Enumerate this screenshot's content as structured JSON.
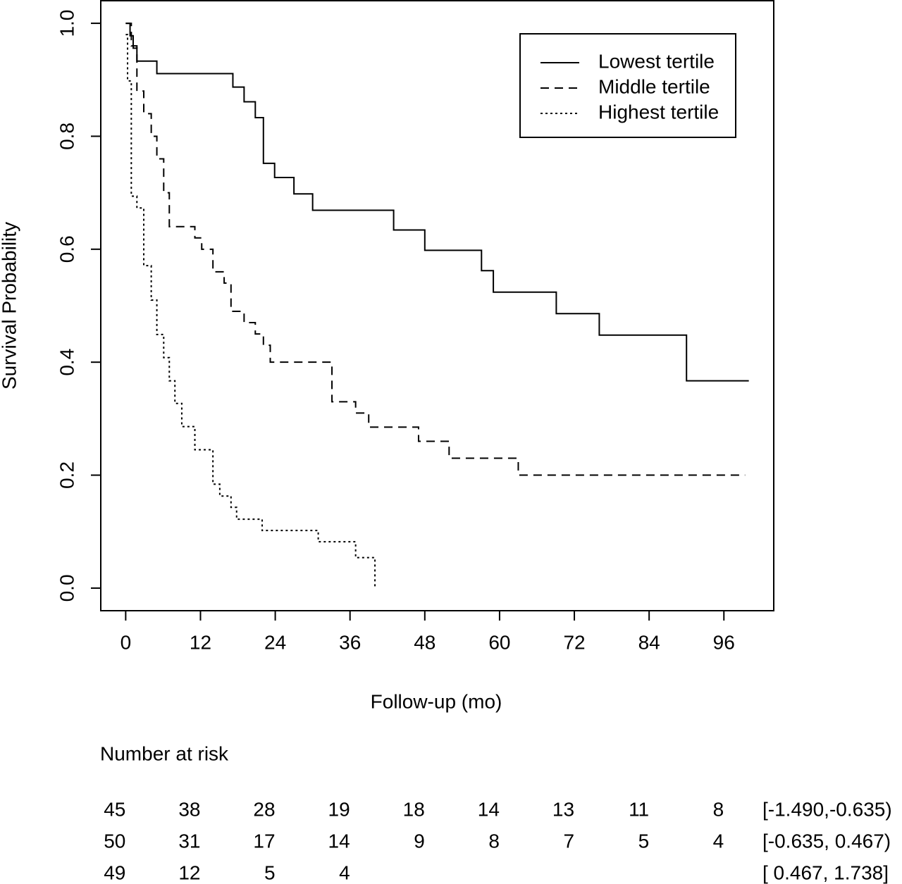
{
  "chart_data": {
    "type": "step",
    "x_label": "Follow-up (mo)",
    "y_label": "Survival Probability",
    "xlim": [
      -4,
      104
    ],
    "ylim": [
      -0.04,
      1.04
    ],
    "xticks": [
      0,
      12,
      24,
      36,
      48,
      60,
      72,
      84,
      96
    ],
    "yticks": [
      {
        "value": 0,
        "label": "0.0"
      },
      {
        "value": 0.2,
        "label": "0.2"
      },
      {
        "value": 0.4,
        "label": "0.4"
      },
      {
        "value": 0.6,
        "label": "0.6"
      },
      {
        "value": 0.8,
        "label": "0.8"
      },
      {
        "value": 1,
        "label": "1.0"
      }
    ],
    "legend_position": "top-right",
    "series": [
      {
        "name": "Lowest tertile",
        "color": "#000000",
        "line_style": "solid",
        "x": [
          0,
          0.7,
          1.2,
          1.8,
          5,
          17.2,
          19,
          20.8,
          22.1,
          23.9,
          27,
          30,
          43,
          48,
          57.1,
          59,
          69.1,
          76,
          90,
          100
        ],
        "values": [
          1.0,
          0.978,
          0.956,
          0.933,
          0.911,
          0.887,
          0.861,
          0.833,
          0.752,
          0.727,
          0.698,
          0.669,
          0.634,
          0.598,
          0.562,
          0.524,
          0.486,
          0.448,
          0.367,
          0.367
        ]
      },
      {
        "name": "Middle tertile",
        "color": "#000000",
        "line_style": "dashed",
        "x": [
          0,
          0.9,
          1.8,
          2.9,
          4.1,
          5,
          6.1,
          7,
          11.1,
          12.2,
          14,
          15.8,
          16.9,
          19,
          20.8,
          22.1,
          23.2,
          33.1,
          36.9,
          39,
          47,
          51.9,
          63,
          99.4
        ],
        "values": [
          1.0,
          0.96,
          0.88,
          0.84,
          0.8,
          0.76,
          0.7,
          0.64,
          0.62,
          0.6,
          0.56,
          0.54,
          0.49,
          0.47,
          0.45,
          0.43,
          0.4,
          0.33,
          0.31,
          0.285,
          0.26,
          0.23,
          0.2,
          0.2
        ]
      },
      {
        "name": "Highest tertile",
        "color": "#000000",
        "line_style": "dotted",
        "x": [
          0,
          0.3,
          0.9,
          1.8,
          2.9,
          4.1,
          5,
          6.1,
          7,
          7.9,
          9,
          11.1,
          14,
          15.1,
          16.9,
          17.8,
          21.9,
          30.9,
          36.9,
          40
        ],
        "values": [
          0.98,
          0.898,
          0.694,
          0.673,
          0.571,
          0.51,
          0.449,
          0.408,
          0.367,
          0.327,
          0.286,
          0.245,
          0.184,
          0.163,
          0.143,
          0.122,
          0.102,
          0.082,
          0.054,
          0
        ]
      }
    ],
    "risk_table": {
      "title": "Number at risk",
      "rows": [
        {
          "label": "[-1.490,-0.635)",
          "values": [
            45,
            38,
            28,
            19,
            18,
            14,
            13,
            11,
            8
          ]
        },
        {
          "label": "[-0.635, 0.467)",
          "values": [
            50,
            31,
            17,
            14,
            9,
            8,
            7,
            5,
            4
          ]
        },
        {
          "label": "[ 0.467, 1.738]",
          "values": [
            49,
            12,
            5,
            4
          ]
        }
      ]
    }
  }
}
